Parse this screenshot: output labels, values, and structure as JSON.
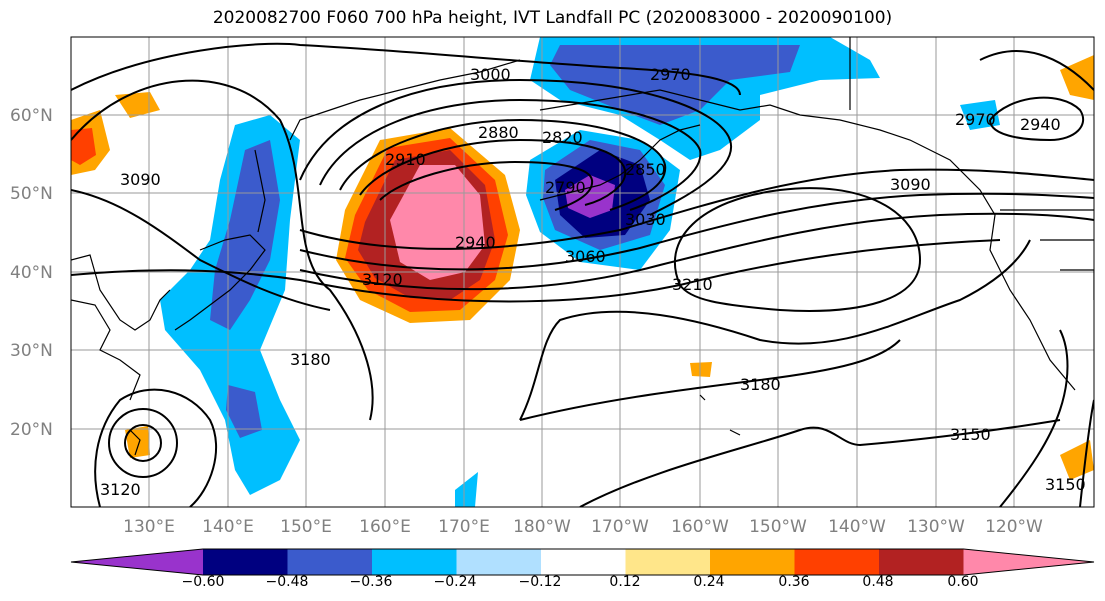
{
  "title": "2020082700 F060 700 hPa height, IVT Landfall PC (2020083000 - 2020090100)",
  "map": {
    "lat_labels": [
      "60°N",
      "50°N",
      "40°N",
      "30°N",
      "20°N"
    ],
    "lon_labels": [
      "130°E",
      "140°E",
      "150°E",
      "160°E",
      "170°E",
      "180°W",
      "170°W",
      "160°W",
      "150°W",
      "140°W",
      "130°W",
      "120°W"
    ]
  },
  "contour_labels": [
    "3000",
    "2970",
    "2880",
    "2820",
    "2910",
    "2940",
    "3090",
    "3030",
    "3060",
    "2790",
    "2850",
    "3120",
    "3210",
    "3180",
    "3150",
    "2940",
    "2970",
    "3090",
    "3120",
    "3150",
    "3180"
  ],
  "colorbar": {
    "ticks": [
      "−0.60",
      "−0.48",
      "−0.36",
      "−0.24",
      "−0.12",
      "0.12",
      "0.24",
      "0.36",
      "0.48",
      "0.60"
    ],
    "colors": [
      "#9933cc",
      "#000080",
      "#3b5bcc",
      "#00bfff",
      "#b0e0ff",
      "#ffffff",
      "#ffe68a",
      "#ffa500",
      "#ff4000",
      "#b22222",
      "#ff88aa"
    ]
  }
}
